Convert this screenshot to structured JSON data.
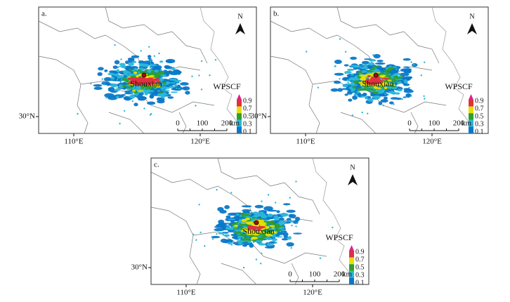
{
  "panels": [
    {
      "label": "a.",
      "north": "N",
      "site": "Shouxian",
      "legend_title": "WPSCF",
      "legend_ticks": [
        0.9,
        0.7,
        0.5,
        0.3,
        0.1
      ],
      "scale_ticks": [
        0,
        100,
        200
      ],
      "scale_unit": "km",
      "lat_label": "30°N",
      "lon_labels": [
        "110°E",
        "120°E"
      ]
    },
    {
      "label": "b.",
      "north": "N",
      "site": "Shouxian",
      "legend_title": "WPSCF",
      "legend_ticks": [
        0.9,
        0.7,
        0.5,
        0.3,
        0.1
      ],
      "scale_ticks": [
        0,
        100,
        200
      ],
      "scale_unit": "km",
      "lat_label": "30°N",
      "lon_labels": [
        "110°E",
        "120°E"
      ]
    },
    {
      "label": "c.",
      "north": "N",
      "site": "Shouxian",
      "legend_title": "WPSCF",
      "legend_ticks": [
        0.9,
        0.7,
        0.5,
        0.3,
        0.1
      ],
      "scale_ticks": [
        0,
        100,
        200
      ],
      "scale_unit": "km",
      "lat_label": "30°N",
      "lon_labels": [
        "110°E",
        "120°E"
      ]
    }
  ]
}
